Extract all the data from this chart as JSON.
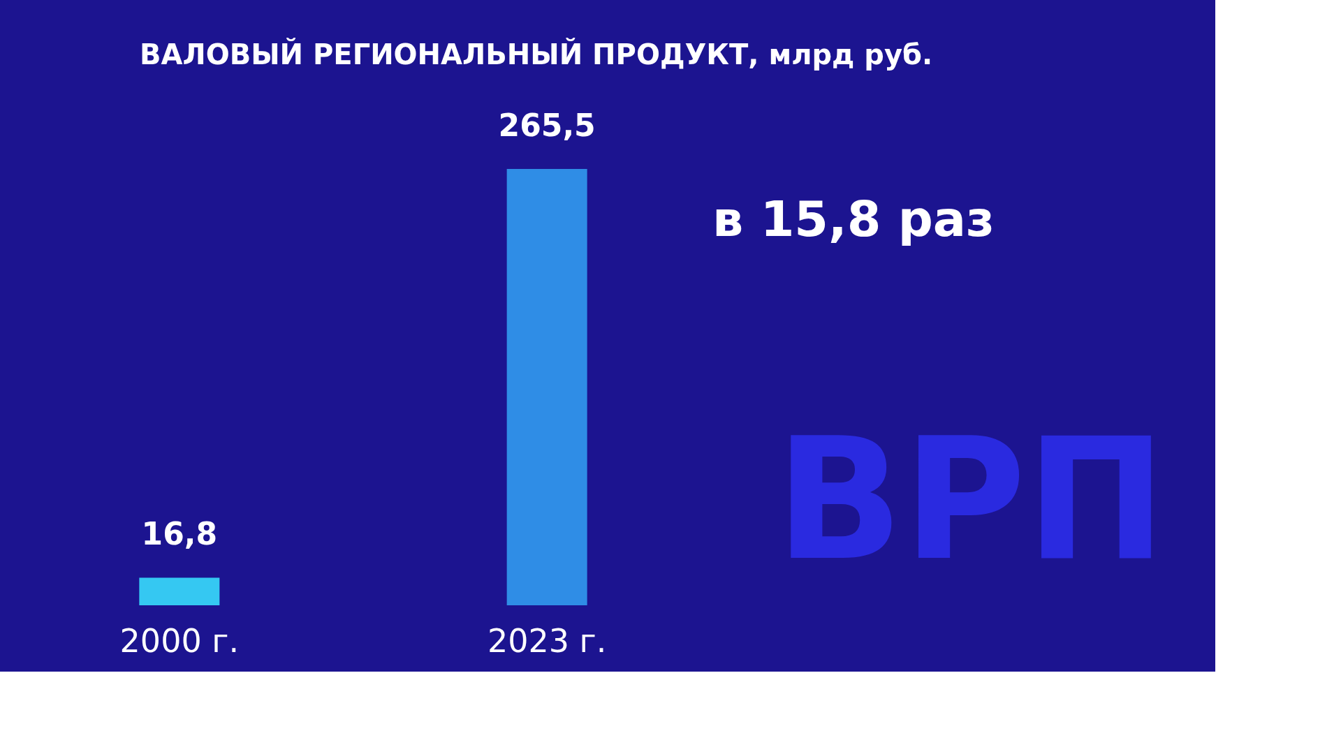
{
  "chart_data": {
    "type": "bar",
    "title": "ВАЛОВЫЙ РЕГИОНАЛЬНЫЙ ПРОДУКТ, млрд руб.",
    "categories": [
      "2000 г.",
      "2023 г."
    ],
    "values": [
      16.8,
      265.5
    ],
    "colors": [
      "#35c8f2",
      "#2f8de6"
    ],
    "value_labels": [
      "16,8",
      "265,5"
    ],
    "annotations": [
      "в 15,8 раз",
      "ВРП"
    ],
    "tick_labels": "x",
    "grid": false
  }
}
